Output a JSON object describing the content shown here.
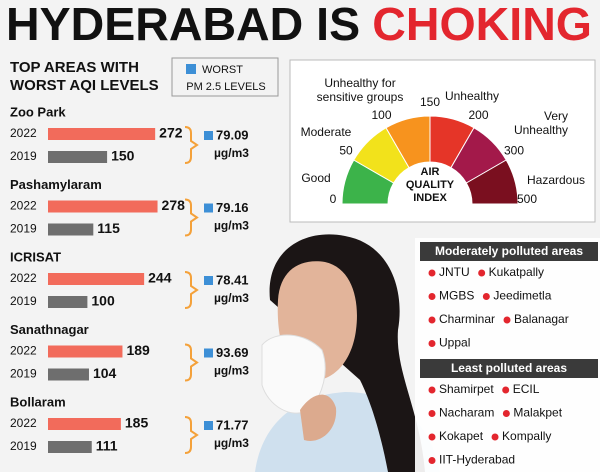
{
  "title": {
    "part1": "HYDERABAD IS",
    "part2": "CHOKING"
  },
  "subtitle": [
    "TOP AREAS WITH",
    "WORST AQI LEVELS"
  ],
  "legend": [
    "WORST",
    "PM 2.5 LEVELS"
  ],
  "pm_unit": "µg/m3",
  "years": [
    "2022",
    "2019"
  ],
  "year_colors": [
    "#f26b5b",
    "#6e6e6e"
  ],
  "areas": [
    {
      "name": "Zoo Park",
      "values": [
        272,
        150
      ],
      "pm25": 79.09
    },
    {
      "name": "Pashamylaram",
      "values": [
        278,
        115
      ],
      "pm25": 79.16
    },
    {
      "name": "ICRISAT",
      "values": [
        244,
        100
      ],
      "pm25": 78.41
    },
    {
      "name": "Sanathnagar",
      "values": [
        189,
        104
      ],
      "pm25": 93.69
    },
    {
      "name": "Bollaram",
      "values": [
        185,
        111
      ],
      "pm25": 71.77
    }
  ],
  "aqi": {
    "center": [
      "AIR",
      "QUALITY",
      "INDEX"
    ],
    "ticks": [
      0,
      50,
      100,
      150,
      200,
      300,
      500
    ],
    "bands": [
      {
        "label": [
          "Good"
        ],
        "color": "#3cb34a"
      },
      {
        "label": [
          "Moderate"
        ],
        "color": "#f2e21b"
      },
      {
        "label": [
          "Unhealthy for",
          "sensitive groups"
        ],
        "color": "#f7931e"
      },
      {
        "label": [
          "Unhealthy"
        ],
        "color": "#e53528"
      },
      {
        "label": [
          "Very",
          "Unhealthy"
        ],
        "color": "#a3194a"
      },
      {
        "label": [
          "Hazardous"
        ],
        "color": "#7a0f1f"
      }
    ]
  },
  "moderate": {
    "title": "Moderately polluted areas",
    "rows": [
      [
        "JNTU",
        "Kukatpally"
      ],
      [
        "MGBS",
        "Jeedimetla"
      ],
      [
        "Charminar",
        "Balanagar"
      ],
      [
        "Uppal"
      ]
    ]
  },
  "least": {
    "title": "Least polluted areas",
    "rows": [
      [
        "Shamirpet",
        "ECIL"
      ],
      [
        "Nacharam",
        "Malakpet"
      ],
      [
        "Kokapet",
        "Kompally"
      ],
      [
        "IIT-Hyderabad"
      ]
    ]
  }
}
